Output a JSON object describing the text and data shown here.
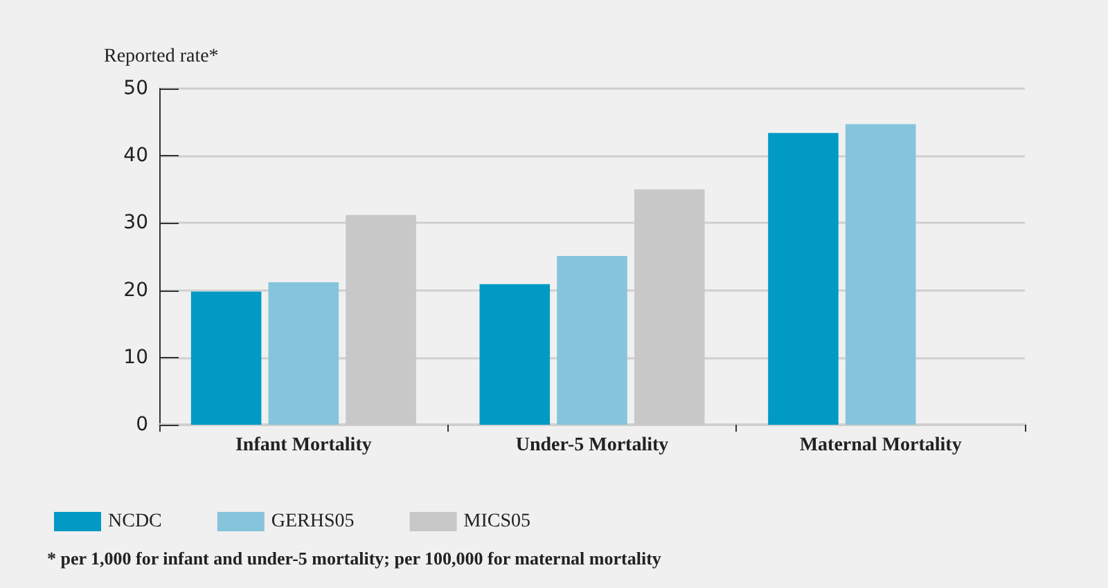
{
  "chart_data": {
    "type": "bar",
    "ylabel": "Reported rate*",
    "categories": [
      "Infant Mortality",
      "Under-5 Mortality",
      "Maternal Mortality"
    ],
    "series": [
      {
        "name": "NCDC",
        "color": "#009ac4",
        "values": [
          19.8,
          20.9,
          43.4
        ]
      },
      {
        "name": "GERHS05",
        "color": "#86c4dc",
        "values": [
          21.2,
          25.1,
          44.7
        ]
      },
      {
        "name": "MICS05",
        "color": "#c8c8c8",
        "values": [
          31.2,
          35.0,
          null
        ]
      }
    ],
    "ylim": [
      0,
      50
    ],
    "yticks": [
      0,
      10,
      20,
      30,
      40,
      50
    ],
    "grid": "y",
    "legend": "bottom left",
    "annotations": [
      "* per 1,000 for infant and under-5 mortality; per 100,000 for maternal mortality"
    ]
  }
}
